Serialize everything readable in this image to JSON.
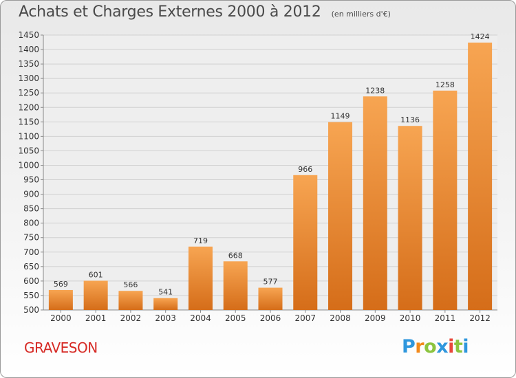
{
  "header": {
    "title": "Achats et Charges Externes 2000 à 2012",
    "unit": "(en milliers d'€)"
  },
  "commune": "GRAVESON",
  "logo": {
    "letters": [
      "P",
      "r",
      "o",
      "x",
      "i",
      "t",
      "i"
    ]
  },
  "colors": {
    "bar_light": "#f7a552",
    "bar_dark": "#d56d19",
    "commune_text": "#d62a25"
  },
  "chart_data": {
    "type": "bar",
    "title": "Achats et Charges Externes 2000 à 2012",
    "subtitle": "(en milliers d'€)",
    "categories": [
      "2000",
      "2001",
      "2002",
      "2003",
      "2004",
      "2005",
      "2006",
      "2007",
      "2008",
      "2009",
      "2010",
      "2011",
      "2012"
    ],
    "values": [
      569,
      601,
      566,
      541,
      719,
      668,
      577,
      966,
      1149,
      1238,
      1136,
      1258,
      1424
    ],
    "ylim": [
      500,
      1450
    ],
    "ytick_step": 50,
    "grid": "horizontal",
    "xlabel": "",
    "ylabel": ""
  }
}
